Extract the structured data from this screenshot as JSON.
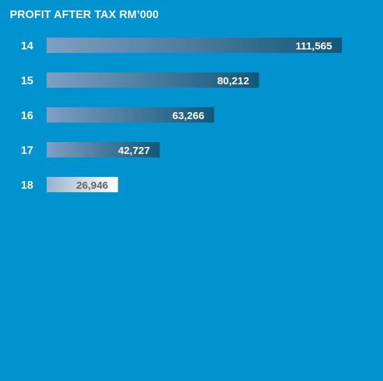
{
  "chart_data": {
    "type": "bar",
    "orientation": "horizontal",
    "title": "PROFIT AFTER TAX RM’000",
    "categories": [
      "14",
      "15",
      "16",
      "17",
      "18"
    ],
    "values": [
      111565,
      80212,
      63266,
      42727,
      26946
    ],
    "value_labels": [
      "111,565",
      "80,212",
      "63,266",
      "42,727",
      "26,946"
    ],
    "xlim": [
      0,
      111565
    ],
    "grid": false,
    "legend": "none",
    "highlighted_category": "18",
    "colors": {
      "background": "#0093cf",
      "bar_start": "#7f9fc2",
      "bar_end": "#125879",
      "highlight_start": "#98b3cd",
      "highlight_end": "#ffffff",
      "text": "#ffffff",
      "highlight_text": "#666666"
    }
  }
}
